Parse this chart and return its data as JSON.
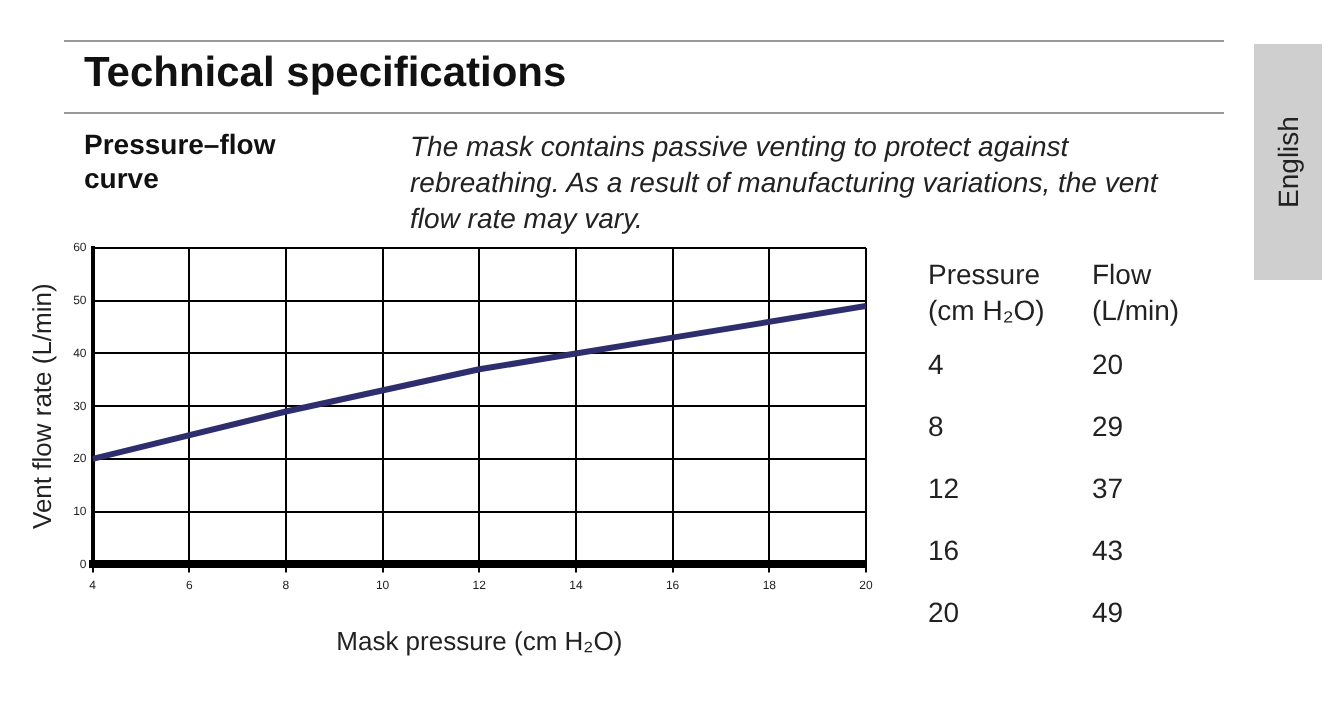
{
  "chart_data": {
    "type": "line",
    "title": "Technical specifications",
    "subtitle": "Pressure–flow curve",
    "xlabel": "Mask pressure (cm H₂O)",
    "ylabel": "Vent flow rate (L/min)",
    "annotations": [
      "The mask contains passive venting to protect against rebreathing. As a result of manufacturing variations, the vent flow rate may vary.",
      "Pressure (cm H₂O)",
      "Flow (L/min)",
      "English",
      "4",
      "20",
      "8",
      "29",
      "12",
      "37",
      "16",
      "43",
      "20",
      "49"
    ],
    "x": [
      4,
      8,
      12,
      16,
      20
    ],
    "series": [
      {
        "color": "#2e2e6e",
        "values": [
          20,
          29,
          37,
          43,
          49
        ]
      }
    ],
    "xlim": [
      4,
      20
    ],
    "xticks": [
      4,
      6,
      8,
      10,
      12,
      14,
      16,
      18,
      20
    ],
    "ylim": [
      0,
      60
    ],
    "yticks": [
      0,
      10,
      20,
      30,
      40,
      50,
      60
    ],
    "grid": true,
    "legend": false,
    "marker": "none",
    "line_style": "solid"
  }
}
